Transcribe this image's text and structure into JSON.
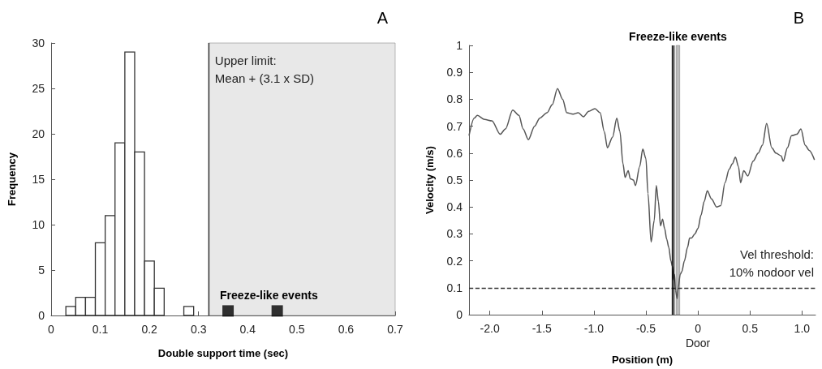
{
  "chart_data": [
    {
      "type": "histogram",
      "xlabel": "Double support time (sec)",
      "ylabel": "Frequency",
      "annotations": [
        "A"
      ],
      "bins": [
        0.03,
        0.05,
        0.07,
        0.09,
        0.11,
        0.13,
        0.15,
        0.17,
        0.19,
        0.21,
        0.23,
        0.25,
        0.27,
        0.29
      ],
      "values": [
        1,
        2,
        2,
        8,
        11,
        19,
        29,
        18,
        6,
        3,
        0,
        0,
        1
      ],
      "color": "#ffffff",
      "series": [
        {
          "type": "scatter",
          "name": "Freeze-like events",
          "x": [
            0.36,
            0.46
          ],
          "values": [
            0.5,
            0.5
          ],
          "color": "#000000",
          "marker": "square"
        }
      ],
      "xlim": [
        0,
        0.7
      ],
      "xticks": [
        0,
        0.1,
        0.2,
        0.3,
        0.4,
        0.5,
        0.6,
        0.7
      ],
      "ylim": [
        0,
        30
      ],
      "yticks": [
        0,
        5,
        10,
        15,
        20,
        25,
        30
      ],
      "ref_lines": [
        {
          "axis": "x",
          "value": 0.32,
          "label": "Upper limit:\nMean + (3.1 x SD)",
          "color": "#333333"
        }
      ],
      "bands": [
        {
          "axis": "x",
          "from": 0.32,
          "to": 0.7,
          "color": "#e8e8e8"
        }
      ],
      "grid": false,
      "legend": false
    },
    {
      "type": "line",
      "xlabel": "Position (m)",
      "ylabel": "Velocity (m/s)",
      "annotations": [
        "B"
      ],
      "x": [
        -2.2,
        -2.15,
        -2.12,
        -2.05,
        -1.98,
        -1.9,
        -1.85,
        -1.78,
        -1.72,
        -1.68,
        -1.63,
        -1.57,
        -1.52,
        -1.45,
        -1.4,
        -1.35,
        -1.3,
        -1.26,
        -1.2,
        -1.15,
        -1.1,
        -1.05,
        -0.99,
        -0.94,
        -0.9,
        -0.87,
        -0.82,
        -0.78,
        -0.75,
        -0.72,
        -0.7,
        -0.67,
        -0.65,
        -0.62,
        -0.6,
        -0.56,
        -0.53,
        -0.5,
        -0.48,
        -0.45,
        -0.42,
        -0.4,
        -0.38,
        -0.36,
        -0.34,
        -0.32,
        -0.3,
        -0.28,
        -0.26,
        -0.245,
        -0.235,
        -0.225,
        -0.215,
        -0.2,
        -0.19,
        -0.17,
        -0.155,
        -0.13,
        -0.1,
        -0.08,
        -0.06,
        -0.03,
        0,
        0.03,
        0.06,
        0.09,
        0.13,
        0.18,
        0.22,
        0.26,
        0.3,
        0.33,
        0.36,
        0.39,
        0.41,
        0.44,
        0.48,
        0.53,
        0.58,
        0.62,
        0.66,
        0.71,
        0.75,
        0.8,
        0.82,
        0.86,
        0.9,
        0.95,
        0.99,
        1.03,
        1.07,
        1.12
      ],
      "values": [
        0.665,
        0.73,
        0.74,
        0.725,
        0.72,
        0.67,
        0.69,
        0.76,
        0.74,
        0.69,
        0.65,
        0.7,
        0.73,
        0.75,
        0.78,
        0.84,
        0.8,
        0.75,
        0.745,
        0.75,
        0.735,
        0.755,
        0.765,
        0.75,
        0.68,
        0.62,
        0.66,
        0.73,
        0.68,
        0.56,
        0.51,
        0.535,
        0.505,
        0.5,
        0.48,
        0.55,
        0.615,
        0.58,
        0.45,
        0.27,
        0.35,
        0.48,
        0.42,
        0.33,
        0.355,
        0.32,
        0.28,
        0.25,
        0.2,
        0.18,
        0.13,
        0.15,
        0.09,
        0.06,
        0.1,
        0.15,
        0.16,
        0.2,
        0.25,
        0.285,
        0.285,
        0.3,
        0.32,
        0.37,
        0.42,
        0.46,
        0.43,
        0.4,
        0.405,
        0.49,
        0.54,
        0.56,
        0.585,
        0.55,
        0.49,
        0.535,
        0.515,
        0.57,
        0.6,
        0.63,
        0.71,
        0.62,
        0.6,
        0.59,
        0.57,
        0.62,
        0.665,
        0.67,
        0.69,
        0.63,
        0.61,
        0.575
      ],
      "color": "#555555",
      "marker": "none",
      "xlim": [
        -2.2,
        1.13
      ],
      "xticks": [
        {
          "value": -2,
          "label": "-2.0"
        },
        -1.5,
        {
          "value": -1,
          "label": "-1.0"
        },
        -0.5,
        {
          "value": 0,
          "label": "0\nDoor"
        },
        0.5,
        {
          "value": 1,
          "label": "1.0"
        }
      ],
      "ylim": [
        0,
        1
      ],
      "yticks": [
        0,
        0.1,
        0.2,
        0.3,
        0.4,
        0.5,
        0.6,
        0.7,
        0.8,
        0.9,
        1
      ],
      "ref_lines": [
        {
          "axis": "y",
          "value": 0.1,
          "label": "Vel threshold:\n10% nodoor vel",
          "color": "#333333",
          "line_style": "dashed"
        },
        {
          "axis": "x",
          "value": -0.25,
          "color": "#000000"
        },
        {
          "axis": "x",
          "value": -0.235,
          "color": "#000000"
        }
      ],
      "bands": [
        {
          "axis": "x",
          "from": -0.21,
          "to": -0.175,
          "label": "Freeze-like events",
          "color": "#bbbbbb"
        }
      ],
      "grid": false,
      "legend": false
    }
  ]
}
